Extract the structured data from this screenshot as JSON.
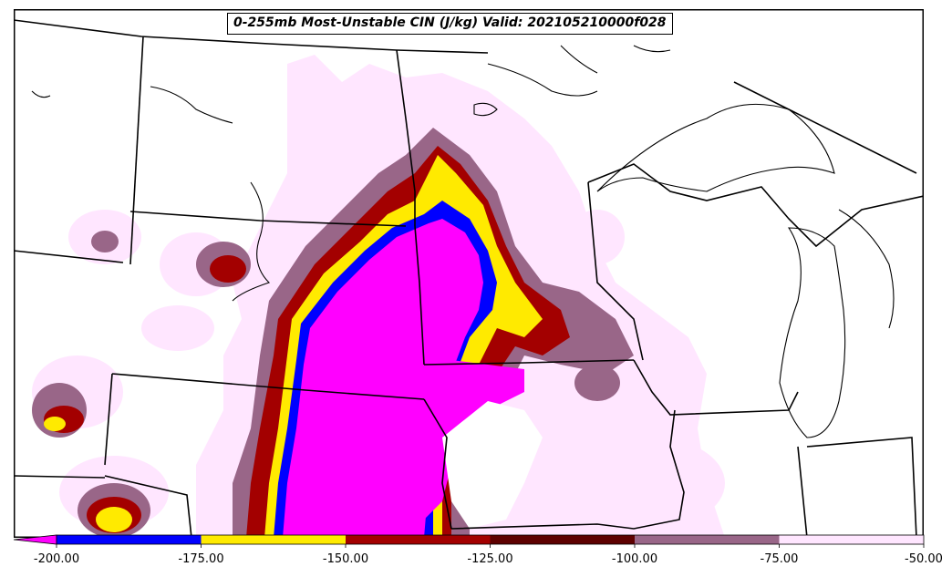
{
  "title": "0-255mb Most-Unstable CIN (J/kg) Valid: 202105210000f028",
  "colorbar": {
    "ticks": [
      "-200.00",
      "-175.00",
      "-150.00",
      "-125.00",
      "-100.00",
      "-75.00",
      "-50.00"
    ],
    "extend": "min",
    "bins": [
      {
        "from": -200,
        "to": -175,
        "color": "#0000ff"
      },
      {
        "from": -175,
        "to": -150,
        "color": "#ffea00"
      },
      {
        "from": -150,
        "to": -125,
        "color": "#a30000"
      },
      {
        "from": -125,
        "to": -100,
        "color": "#5e0000"
      },
      {
        "from": -100,
        "to": -75,
        "color": "#996688"
      },
      {
        "from": -75,
        "to": -50,
        "color": "#ffe6ff"
      }
    ],
    "under_color": "#ff00ff"
  },
  "colors": {
    "strong_cin": "#ff00ff",
    "land": "#ffffff",
    "border": "#000000"
  }
}
